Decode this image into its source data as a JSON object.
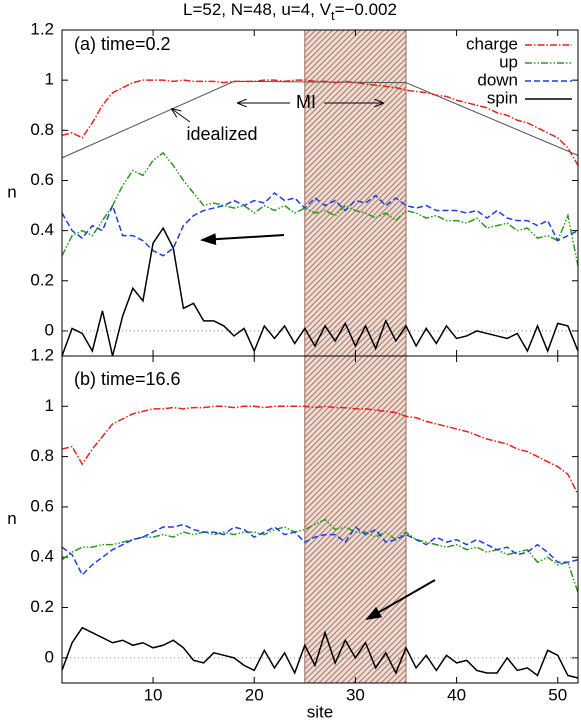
{
  "figure_title": [
    "L=52, N=48, u=4, V",
    "t",
    "=−0.002"
  ],
  "chart_data": [
    {
      "type": "line",
      "panel_label": "(a) time=0.2",
      "ylabel": "n",
      "xlim": [
        1,
        52
      ],
      "ylim": [
        -0.1,
        1.2
      ],
      "xticks": [
        10,
        20,
        30,
        40,
        50
      ],
      "yticks": [
        0,
        0.2,
        0.4,
        0.6,
        0.8,
        1,
        1.2
      ],
      "show_xtick_labels": false,
      "zero_line": true,
      "legend": "top-right",
      "band": {
        "from": 25,
        "to": 35,
        "color": "#8b4a3a"
      },
      "x": [
        1,
        2,
        3,
        4,
        5,
        6,
        7,
        8,
        9,
        10,
        11,
        12,
        13,
        14,
        15,
        16,
        17,
        18,
        19,
        20,
        21,
        22,
        23,
        24,
        25,
        26,
        27,
        28,
        29,
        30,
        31,
        32,
        33,
        34,
        35,
        36,
        37,
        38,
        39,
        40,
        41,
        42,
        43,
        44,
        45,
        46,
        47,
        48,
        49,
        50,
        51,
        52
      ],
      "series": [
        {
          "name": "charge",
          "color": "#e8231c",
          "style": "dash-dot",
          "values": [
            0.78,
            0.79,
            0.77,
            0.83,
            0.9,
            0.95,
            0.97,
            0.99,
            1.0,
            1.0,
            1.0,
            0.995,
            1.0,
            0.995,
            0.995,
            0.995,
            0.99,
            0.995,
            0.995,
            0.995,
            1.0,
            1.0,
            0.995,
            1.0,
            1.0,
            0.995,
            0.995,
            0.99,
            0.995,
            0.99,
            0.985,
            0.98,
            0.975,
            0.97,
            0.96,
            0.955,
            0.95,
            0.94,
            0.935,
            0.92,
            0.91,
            0.9,
            0.89,
            0.87,
            0.86,
            0.84,
            0.83,
            0.81,
            0.79,
            0.77,
            0.73,
            0.66
          ]
        },
        {
          "name": "up",
          "color": "#2a9a1c",
          "style": "dash-dot-dot",
          "values": [
            0.3,
            0.38,
            0.4,
            0.38,
            0.44,
            0.5,
            0.58,
            0.64,
            0.62,
            0.68,
            0.71,
            0.66,
            0.6,
            0.55,
            0.5,
            0.51,
            0.5,
            0.49,
            0.5,
            0.47,
            0.5,
            0.48,
            0.5,
            0.47,
            0.49,
            0.47,
            0.48,
            0.46,
            0.5,
            0.48,
            0.47,
            0.45,
            0.47,
            0.44,
            0.48,
            0.47,
            0.45,
            0.46,
            0.44,
            0.44,
            0.43,
            0.45,
            0.41,
            0.42,
            0.43,
            0.4,
            0.41,
            0.37,
            0.38,
            0.36,
            0.46,
            0.26
          ]
        },
        {
          "name": "down",
          "color": "#1f3fe0",
          "style": "dash",
          "values": [
            0.47,
            0.4,
            0.37,
            0.42,
            0.4,
            0.5,
            0.38,
            0.38,
            0.36,
            0.32,
            0.3,
            0.33,
            0.42,
            0.46,
            0.48,
            0.49,
            0.5,
            0.52,
            0.5,
            0.52,
            0.51,
            0.55,
            0.52,
            0.53,
            0.49,
            0.53,
            0.5,
            0.52,
            0.48,
            0.52,
            0.51,
            0.54,
            0.5,
            0.53,
            0.5,
            0.49,
            0.5,
            0.48,
            0.48,
            0.48,
            0.47,
            0.48,
            0.45,
            0.48,
            0.45,
            0.44,
            0.44,
            0.42,
            0.44,
            0.36,
            0.38,
            0.4
          ]
        },
        {
          "name": "spin",
          "color": "#000000",
          "style": "solid",
          "values": [
            -0.1,
            0.01,
            -0.01,
            -0.08,
            0.08,
            -0.1,
            0.06,
            0.17,
            0.12,
            0.35,
            0.41,
            0.33,
            0.09,
            0.11,
            0.04,
            0.04,
            0.02,
            -0.02,
            0.01,
            -0.08,
            0.02,
            -0.03,
            0.02,
            -0.05,
            0.01,
            -0.06,
            0.02,
            -0.04,
            0.03,
            -0.06,
            0.02,
            -0.07,
            0.04,
            -0.04,
            0.02,
            -0.06,
            0.01,
            -0.05,
            0.02,
            -0.03,
            -0.02,
            0.0,
            -0.01,
            -0.02,
            -0.03,
            -0.01,
            -0.08,
            0.02,
            -0.08,
            0.03,
            0.02,
            -0.08
          ]
        }
      ],
      "reference": {
        "color": "#555555",
        "x": [
          1,
          18,
          35,
          52
        ],
        "values": [
          0.69,
          0.995,
          0.99,
          0.7
        ]
      },
      "annotations": [
        "idealized",
        "MI"
      ]
    },
    {
      "type": "line",
      "panel_label": "(b) time=16.6",
      "ylabel": "n",
      "xlabel": "site",
      "xlim": [
        1,
        52
      ],
      "ylim": [
        -0.1,
        1.2
      ],
      "xticks": [
        10,
        20,
        30,
        40,
        50
      ],
      "yticks": [
        0,
        0.2,
        0.4,
        0.6,
        0.8,
        1,
        1.2
      ],
      "show_xtick_labels": true,
      "zero_line": true,
      "band": {
        "from": 25,
        "to": 35,
        "color": "#8b4a3a"
      },
      "x": [
        1,
        2,
        3,
        4,
        5,
        6,
        7,
        8,
        9,
        10,
        11,
        12,
        13,
        14,
        15,
        16,
        17,
        18,
        19,
        20,
        21,
        22,
        23,
        24,
        25,
        26,
        27,
        28,
        29,
        30,
        31,
        32,
        33,
        34,
        35,
        36,
        37,
        38,
        39,
        40,
        41,
        42,
        43,
        44,
        45,
        46,
        47,
        48,
        49,
        50,
        51,
        52
      ],
      "series": [
        {
          "color": "#e8231c",
          "style": "dash-dot",
          "values": [
            0.83,
            0.84,
            0.77,
            0.83,
            0.88,
            0.93,
            0.95,
            0.97,
            0.98,
            0.99,
            0.99,
            0.995,
            0.99,
            0.995,
            0.995,
            1.0,
            1.0,
            0.995,
            1.0,
            1.0,
            0.995,
            1.0,
            1.0,
            1.0,
            1.0,
            0.995,
            1.0,
            0.995,
            0.995,
            0.99,
            0.99,
            0.985,
            0.98,
            0.975,
            0.96,
            0.955,
            0.94,
            0.93,
            0.92,
            0.91,
            0.9,
            0.885,
            0.87,
            0.86,
            0.85,
            0.83,
            0.82,
            0.8,
            0.78,
            0.76,
            0.73,
            0.65
          ]
        },
        {
          "color": "#2a9a1c",
          "style": "dash-dot-dot",
          "values": [
            0.39,
            0.42,
            0.44,
            0.44,
            0.45,
            0.45,
            0.46,
            0.47,
            0.48,
            0.48,
            0.49,
            0.48,
            0.5,
            0.49,
            0.5,
            0.49,
            0.5,
            0.49,
            0.5,
            0.5,
            0.49,
            0.51,
            0.52,
            0.5,
            0.51,
            0.53,
            0.55,
            0.51,
            0.52,
            0.5,
            0.5,
            0.48,
            0.5,
            0.47,
            0.5,
            0.47,
            0.46,
            0.45,
            0.44,
            0.45,
            0.43,
            0.44,
            0.42,
            0.43,
            0.41,
            0.42,
            0.43,
            0.38,
            0.4,
            0.37,
            0.38,
            0.26
          ]
        },
        {
          "color": "#1f3fe0",
          "style": "dash",
          "values": [
            0.44,
            0.41,
            0.33,
            0.37,
            0.4,
            0.43,
            0.45,
            0.47,
            0.48,
            0.5,
            0.52,
            0.52,
            0.53,
            0.51,
            0.5,
            0.5,
            0.49,
            0.52,
            0.51,
            0.48,
            0.5,
            0.52,
            0.49,
            0.5,
            0.46,
            0.48,
            0.49,
            0.49,
            0.46,
            0.52,
            0.49,
            0.51,
            0.46,
            0.47,
            0.49,
            0.47,
            0.45,
            0.48,
            0.46,
            0.47,
            0.45,
            0.47,
            0.45,
            0.43,
            0.44,
            0.41,
            0.42,
            0.45,
            0.42,
            0.38,
            0.38,
            0.39
          ]
        },
        {
          "color": "#000000",
          "style": "solid",
          "values": [
            -0.05,
            0.06,
            0.12,
            0.1,
            0.08,
            0.06,
            0.07,
            0.05,
            0.06,
            0.04,
            0.05,
            0.07,
            0.04,
            -0.01,
            -0.02,
            0.02,
            0.01,
            0.0,
            -0.03,
            -0.05,
            0.03,
            -0.04,
            0.02,
            -0.06,
            0.05,
            -0.03,
            0.1,
            -0.02,
            0.07,
            0.0,
            0.06,
            -0.04,
            0.02,
            -0.06,
            0.04,
            -0.04,
            0.01,
            -0.05,
            0.01,
            -0.02,
            -0.01,
            -0.05,
            -0.06,
            -0.06,
            0.0,
            -0.05,
            -0.04,
            -0.07,
            0.03,
            0.01,
            -0.07,
            -0.08
          ]
        }
      ]
    }
  ]
}
